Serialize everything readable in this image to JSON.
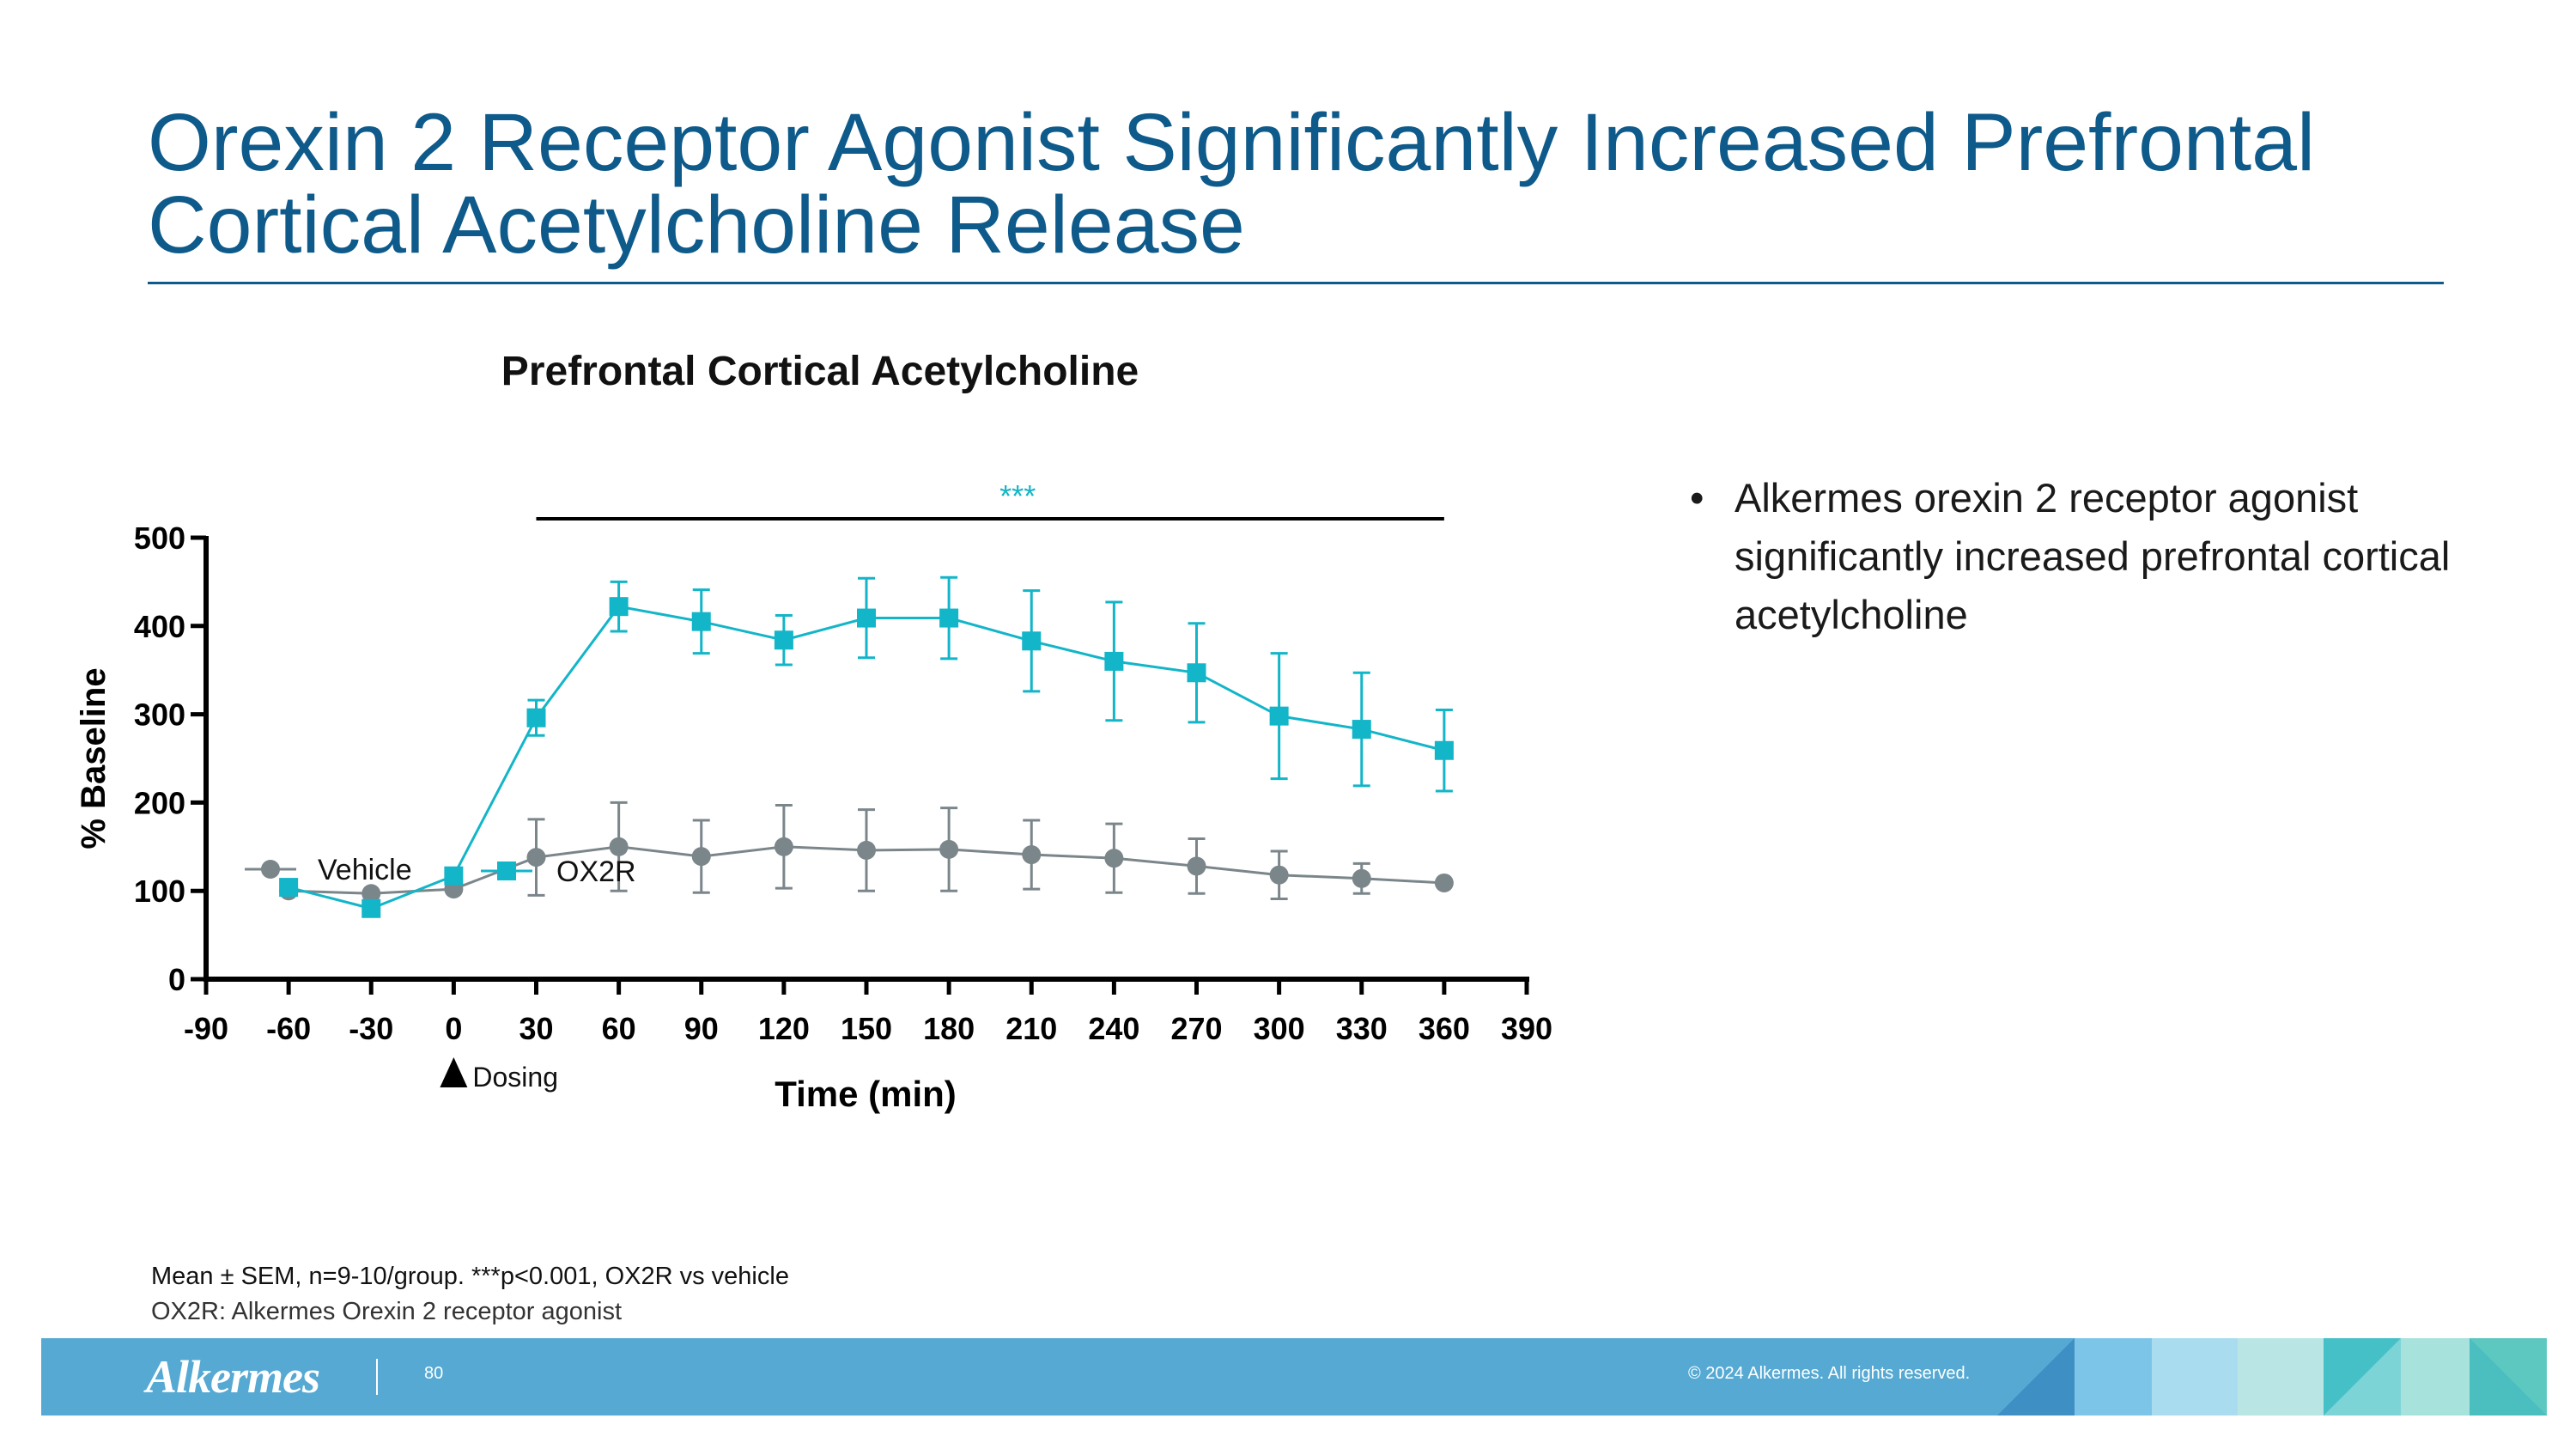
{
  "slide": {
    "title_line1": "Orexin 2 Receptor Agonist Significantly Increased Prefrontal",
    "title_line2": "Cortical Acetylcholine Release",
    "bullet": "Alkermes orexin 2 receptor agonist significantly increased prefrontal cortical acetylcholine",
    "bullet_marker": "•",
    "footnote_1": "Mean ± SEM, n=9-10/group. ***p<0.001, OX2R vs vehicle",
    "footnote_2": "OX2R: Alkermes Orexin 2 receptor agonist"
  },
  "footer": {
    "logo": "Alkermes",
    "page_number": "80",
    "copyright": "© 2024 Alkermes. All rights reserved."
  },
  "colors": {
    "title": "#0e5a8a",
    "vehicle": "#7b868b",
    "ox2r": "#13b5c8",
    "footer": "#55a9d3"
  },
  "chart_data": {
    "type": "line",
    "title": "Prefrontal Cortical Acetylcholine",
    "xlabel": "Time (min)",
    "ylabel": "% Baseline",
    "xlim": [
      -90,
      390
    ],
    "ylim": [
      0,
      500
    ],
    "x_ticks": [
      -90,
      -60,
      -30,
      0,
      30,
      60,
      90,
      120,
      150,
      180,
      210,
      240,
      270,
      300,
      330,
      360,
      390
    ],
    "y_ticks": [
      0,
      100,
      200,
      300,
      400,
      500
    ],
    "dosing_label": "Dosing",
    "dosing_x": 0,
    "significance": {
      "label": "***",
      "x_start": 30,
      "x_end": 360
    },
    "series": [
      {
        "name": "Vehicle",
        "marker": "circle",
        "x": [
          -60,
          -30,
          0,
          30,
          60,
          90,
          120,
          150,
          180,
          210,
          240,
          270,
          300,
          330,
          360
        ],
        "values": [
          100,
          97,
          102,
          138,
          150,
          139,
          150,
          146,
          147,
          141,
          137,
          128,
          118,
          114,
          109
        ],
        "sem": [
          0,
          0,
          0,
          43,
          50,
          41,
          47,
          46,
          47,
          39,
          39,
          31,
          27,
          17,
          0
        ]
      },
      {
        "name": "OX2R",
        "marker": "square",
        "x": [
          -60,
          -30,
          0,
          30,
          60,
          90,
          120,
          150,
          180,
          210,
          240,
          270,
          300,
          330,
          360
        ],
        "values": [
          104,
          80,
          117,
          296,
          422,
          405,
          384,
          409,
          409,
          383,
          360,
          347,
          298,
          283,
          259
        ],
        "sem": [
          0,
          0,
          0,
          20,
          28,
          36,
          28,
          45,
          46,
          57,
          67,
          56,
          71,
          64,
          46
        ]
      }
    ]
  }
}
